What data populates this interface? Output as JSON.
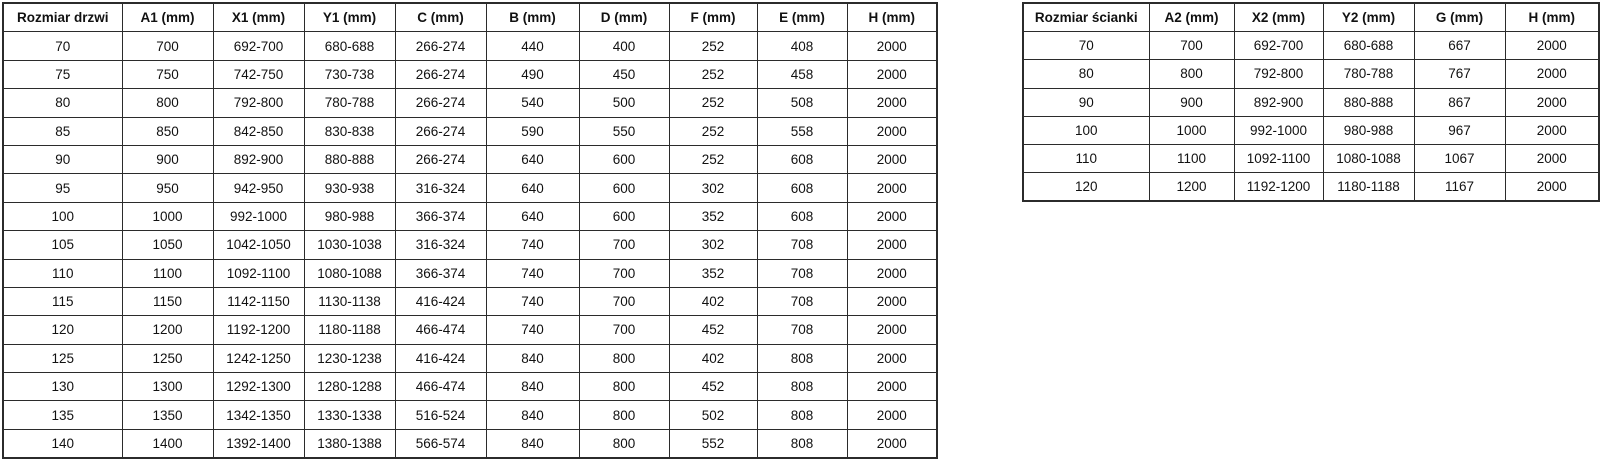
{
  "colors": {
    "border": "#2b2b2b",
    "text": "#111111",
    "background": "#ffffff"
  },
  "door_table": {
    "headers": [
      "Rozmiar drzwi",
      "A1 (mm)",
      "X1 (mm)",
      "Y1 (mm)",
      "C (mm)",
      "B (mm)",
      "D (mm)",
      "F (mm)",
      "E (mm)",
      "H (mm)"
    ],
    "rows": [
      [
        "70",
        "700",
        "692-700",
        "680-688",
        "266-274",
        "440",
        "400",
        "252",
        "408",
        "2000"
      ],
      [
        "75",
        "750",
        "742-750",
        "730-738",
        "266-274",
        "490",
        "450",
        "252",
        "458",
        "2000"
      ],
      [
        "80",
        "800",
        "792-800",
        "780-788",
        "266-274",
        "540",
        "500",
        "252",
        "508",
        "2000"
      ],
      [
        "85",
        "850",
        "842-850",
        "830-838",
        "266-274",
        "590",
        "550",
        "252",
        "558",
        "2000"
      ],
      [
        "90",
        "900",
        "892-900",
        "880-888",
        "266-274",
        "640",
        "600",
        "252",
        "608",
        "2000"
      ],
      [
        "95",
        "950",
        "942-950",
        "930-938",
        "316-324",
        "640",
        "600",
        "302",
        "608",
        "2000"
      ],
      [
        "100",
        "1000",
        "992-1000",
        "980-988",
        "366-374",
        "640",
        "600",
        "352",
        "608",
        "2000"
      ],
      [
        "105",
        "1050",
        "1042-1050",
        "1030-1038",
        "316-324",
        "740",
        "700",
        "302",
        "708",
        "2000"
      ],
      [
        "110",
        "1100",
        "1092-1100",
        "1080-1088",
        "366-374",
        "740",
        "700",
        "352",
        "708",
        "2000"
      ],
      [
        "115",
        "1150",
        "1142-1150",
        "1130-1138",
        "416-424",
        "740",
        "700",
        "402",
        "708",
        "2000"
      ],
      [
        "120",
        "1200",
        "1192-1200",
        "1180-1188",
        "466-474",
        "740",
        "700",
        "452",
        "708",
        "2000"
      ],
      [
        "125",
        "1250",
        "1242-1250",
        "1230-1238",
        "416-424",
        "840",
        "800",
        "402",
        "808",
        "2000"
      ],
      [
        "130",
        "1300",
        "1292-1300",
        "1280-1288",
        "466-474",
        "840",
        "800",
        "452",
        "808",
        "2000"
      ],
      [
        "135",
        "1350",
        "1342-1350",
        "1330-1338",
        "516-524",
        "840",
        "800",
        "502",
        "808",
        "2000"
      ],
      [
        "140",
        "1400",
        "1392-1400",
        "1380-1388",
        "566-574",
        "840",
        "800",
        "552",
        "808",
        "2000"
      ]
    ]
  },
  "wall_table": {
    "headers": [
      "Rozmiar ścianki",
      "A2 (mm)",
      "X2 (mm)",
      "Y2 (mm)",
      "G (mm)",
      "H (mm)"
    ],
    "rows": [
      [
        "70",
        "700",
        "692-700",
        "680-688",
        "667",
        "2000"
      ],
      [
        "80",
        "800",
        "792-800",
        "780-788",
        "767",
        "2000"
      ],
      [
        "90",
        "900",
        "892-900",
        "880-888",
        "867",
        "2000"
      ],
      [
        "100",
        "1000",
        "992-1000",
        "980-988",
        "967",
        "2000"
      ],
      [
        "110",
        "1100",
        "1092-1100",
        "1080-1088",
        "1067",
        "2000"
      ],
      [
        "120",
        "1200",
        "1192-1200",
        "1180-1188",
        "1167",
        "2000"
      ]
    ]
  }
}
